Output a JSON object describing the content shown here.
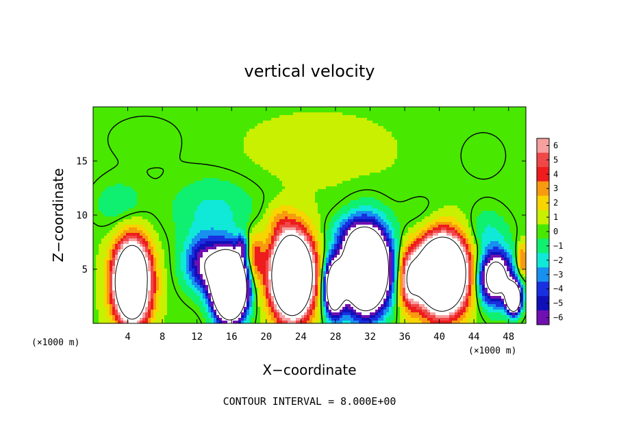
{
  "chart_data": {
    "type": "heatmap",
    "title": "vertical velocity",
    "xlabel": "X−coordinate",
    "ylabel": "Z−coordinate",
    "x_unit_left": "(×1000 m)",
    "x_unit_right": "(×1000 m)",
    "footer": "CONTOUR INTERVAL = 8.000E+00",
    "xlim": [
      0,
      50
    ],
    "ylim": [
      0,
      20
    ],
    "x_ticks": [
      4,
      8,
      12,
      16,
      20,
      24,
      28,
      32,
      36,
      40,
      44,
      48
    ],
    "x_tick_labels": [
      "4",
      "8",
      "12",
      "16",
      "20",
      "24",
      "28",
      "32",
      "36",
      "40",
      "44",
      "48"
    ],
    "y_ticks": [
      5,
      10,
      15
    ],
    "y_tick_labels": [
      "5",
      "10",
      "15"
    ],
    "colorbar": {
      "levels": [
        6,
        5,
        4,
        3,
        2,
        1,
        0,
        -1,
        -2,
        -3,
        -4,
        -5,
        -6
      ],
      "level_labels": [
        "6",
        "5",
        "4",
        "3",
        "2",
        "1",
        "0",
        "−1",
        "−2",
        "−3",
        "−4",
        "−5",
        "−6"
      ],
      "colors": [
        "#f6a0a0",
        "#f04848",
        "#ee1c1c",
        "#f89a10",
        "#f8d400",
        "#c8f000",
        "#48e800",
        "#10f070",
        "#10e8d8",
        "#1890f0",
        "#1830e0",
        "#1010b8",
        "#7010b0"
      ],
      "clip_high": "#ffffff",
      "clip_low": "#ffffff"
    },
    "background_value": 0.3,
    "features": [
      {
        "x": 4.5,
        "z": 3.8,
        "rx": 2.0,
        "rz": 3.5,
        "amp": 20
      },
      {
        "x": 5.9,
        "z": 3.6,
        "rx": 0.7,
        "rz": 1.8,
        "amp": -2
      },
      {
        "x": 13.0,
        "z": 5.5,
        "rx": 2.4,
        "rz": 2.5,
        "amp": -7
      },
      {
        "x": 15.8,
        "z": 3.4,
        "rx": 1.8,
        "rz": 2.8,
        "amp": -28
      },
      {
        "x": 17.2,
        "z": 7.2,
        "rx": 0.6,
        "rz": 1.0,
        "amp": -4
      },
      {
        "x": 18.7,
        "z": 6.0,
        "rx": 1.0,
        "rz": 2.3,
        "amp": 4
      },
      {
        "x": 23.0,
        "z": 4.4,
        "rx": 2.3,
        "rz": 3.6,
        "amp": 22
      },
      {
        "x": 27.8,
        "z": 3.2,
        "rx": 1.1,
        "rz": 2.5,
        "amp": -14
      },
      {
        "x": 31.5,
        "z": 5.0,
        "rx": 2.5,
        "rz": 3.6,
        "amp": -26
      },
      {
        "x": 36.5,
        "z": 4.0,
        "rx": 1.2,
        "rz": 2.6,
        "amp": 6
      },
      {
        "x": 40.3,
        "z": 4.6,
        "rx": 2.8,
        "rz": 3.4,
        "amp": 22
      },
      {
        "x": 46.5,
        "z": 4.2,
        "rx": 2.0,
        "rz": 2.4,
        "amp": -12
      },
      {
        "x": 48.6,
        "z": 2.3,
        "rx": 0.8,
        "rz": 1.3,
        "amp": -18
      },
      {
        "x": 49.6,
        "z": 5.8,
        "rx": 0.7,
        "rz": 1.5,
        "amp": 4
      },
      {
        "x": 14.0,
        "z": 10.5,
        "rx": 5.0,
        "rz": 3.0,
        "amp": -2
      },
      {
        "x": 3.0,
        "z": 11.0,
        "rx": 3.0,
        "rz": 2.2,
        "amp": -1.5
      },
      {
        "x": 21.5,
        "z": 9.5,
        "rx": 1.6,
        "rz": 1.5,
        "amp": 1.5
      },
      {
        "x": 29.0,
        "z": 8.5,
        "rx": 2.0,
        "rz": 1.5,
        "amp": -1.5
      },
      {
        "x": 38.5,
        "z": 9.5,
        "rx": 3.0,
        "rz": 2.2,
        "amp": -1.2
      },
      {
        "x": 45.5,
        "z": 8.5,
        "rx": 2.5,
        "rz": 2.0,
        "amp": -1.8
      },
      {
        "x": 26.0,
        "z": 16.0,
        "rx": 8.0,
        "rz": 3.0,
        "amp": 0.8
      },
      {
        "x": 6.0,
        "z": 17.0,
        "rx": 6.0,
        "rz": 3.0,
        "amp": -0.5
      },
      {
        "x": 45.0,
        "z": 15.5,
        "rx": 5.0,
        "rz": 4.0,
        "amp": -0.4
      }
    ]
  }
}
